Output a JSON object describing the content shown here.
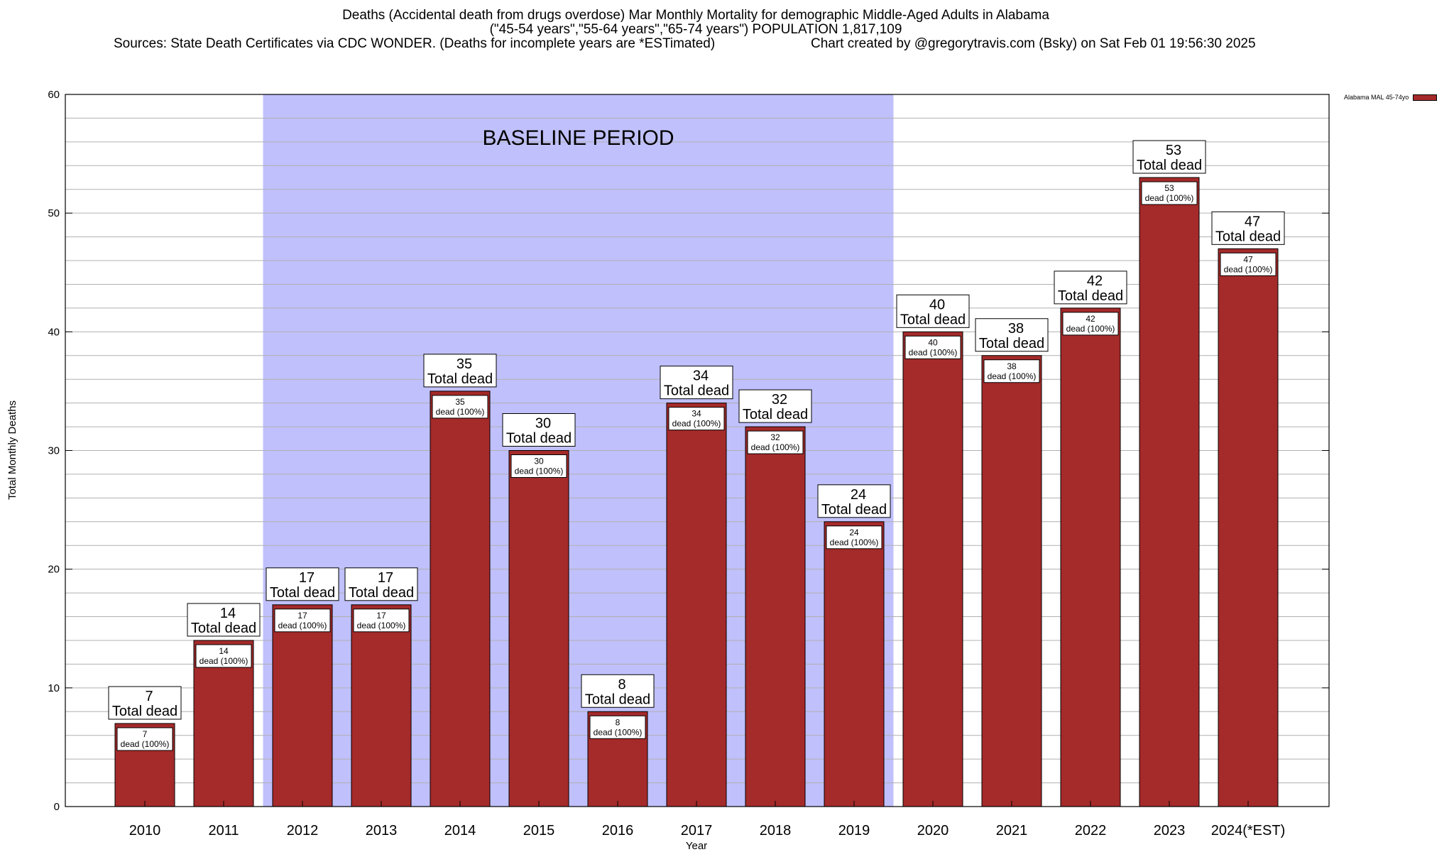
{
  "header": {
    "title_line1": "Deaths (Accidental death from drugs overdose) Mar Monthly Mortality for demographic Middle-Aged Adults in Alabama",
    "title_line2": "(\"45-54 years\",\"55-64 years\",\"65-74 years\") POPULATION 1,817,109",
    "sources": "Sources: State Death Certificates via CDC WONDER. (Deaths for incomplete years are *ESTimated)",
    "credit": "Chart created by @gregorytravis.com (Bsky) on Sat Feb 01 19:56:30 2025"
  },
  "legend": {
    "label": "Alabama MAL 45-74yo"
  },
  "colors": {
    "bar": "#a52a2a",
    "baseline": "#c0c0fc"
  },
  "chart_data": {
    "type": "bar",
    "title": "Deaths (Accidental death from drugs overdose) Mar Monthly Mortality for demographic Middle-Aged Adults in Alabama",
    "xlabel": "Year",
    "ylabel": "Total Monthly Deaths",
    "ylim": [
      0,
      60
    ],
    "yticks": [
      0,
      10,
      20,
      30,
      40,
      50,
      60
    ],
    "categories": [
      "2010",
      "2011",
      "2012",
      "2013",
      "2014",
      "2015",
      "2016",
      "2017",
      "2018",
      "2019",
      "2020",
      "2021",
      "2022",
      "2023",
      "2024(*EST)"
    ],
    "series": [
      {
        "name": "Alabama MAL 45-74yo",
        "values": [
          7,
          14,
          17,
          17,
          35,
          30,
          8,
          34,
          32,
          24,
          40,
          38,
          42,
          53,
          47
        ]
      }
    ],
    "total_label_suffix": "Total dead",
    "inner_label_suffix": "dead (100%)",
    "annotation": {
      "text": "BASELINE PERIOD",
      "from_category": "2012",
      "to_category": "2019"
    },
    "grid": true,
    "legend_position": "top-right"
  }
}
